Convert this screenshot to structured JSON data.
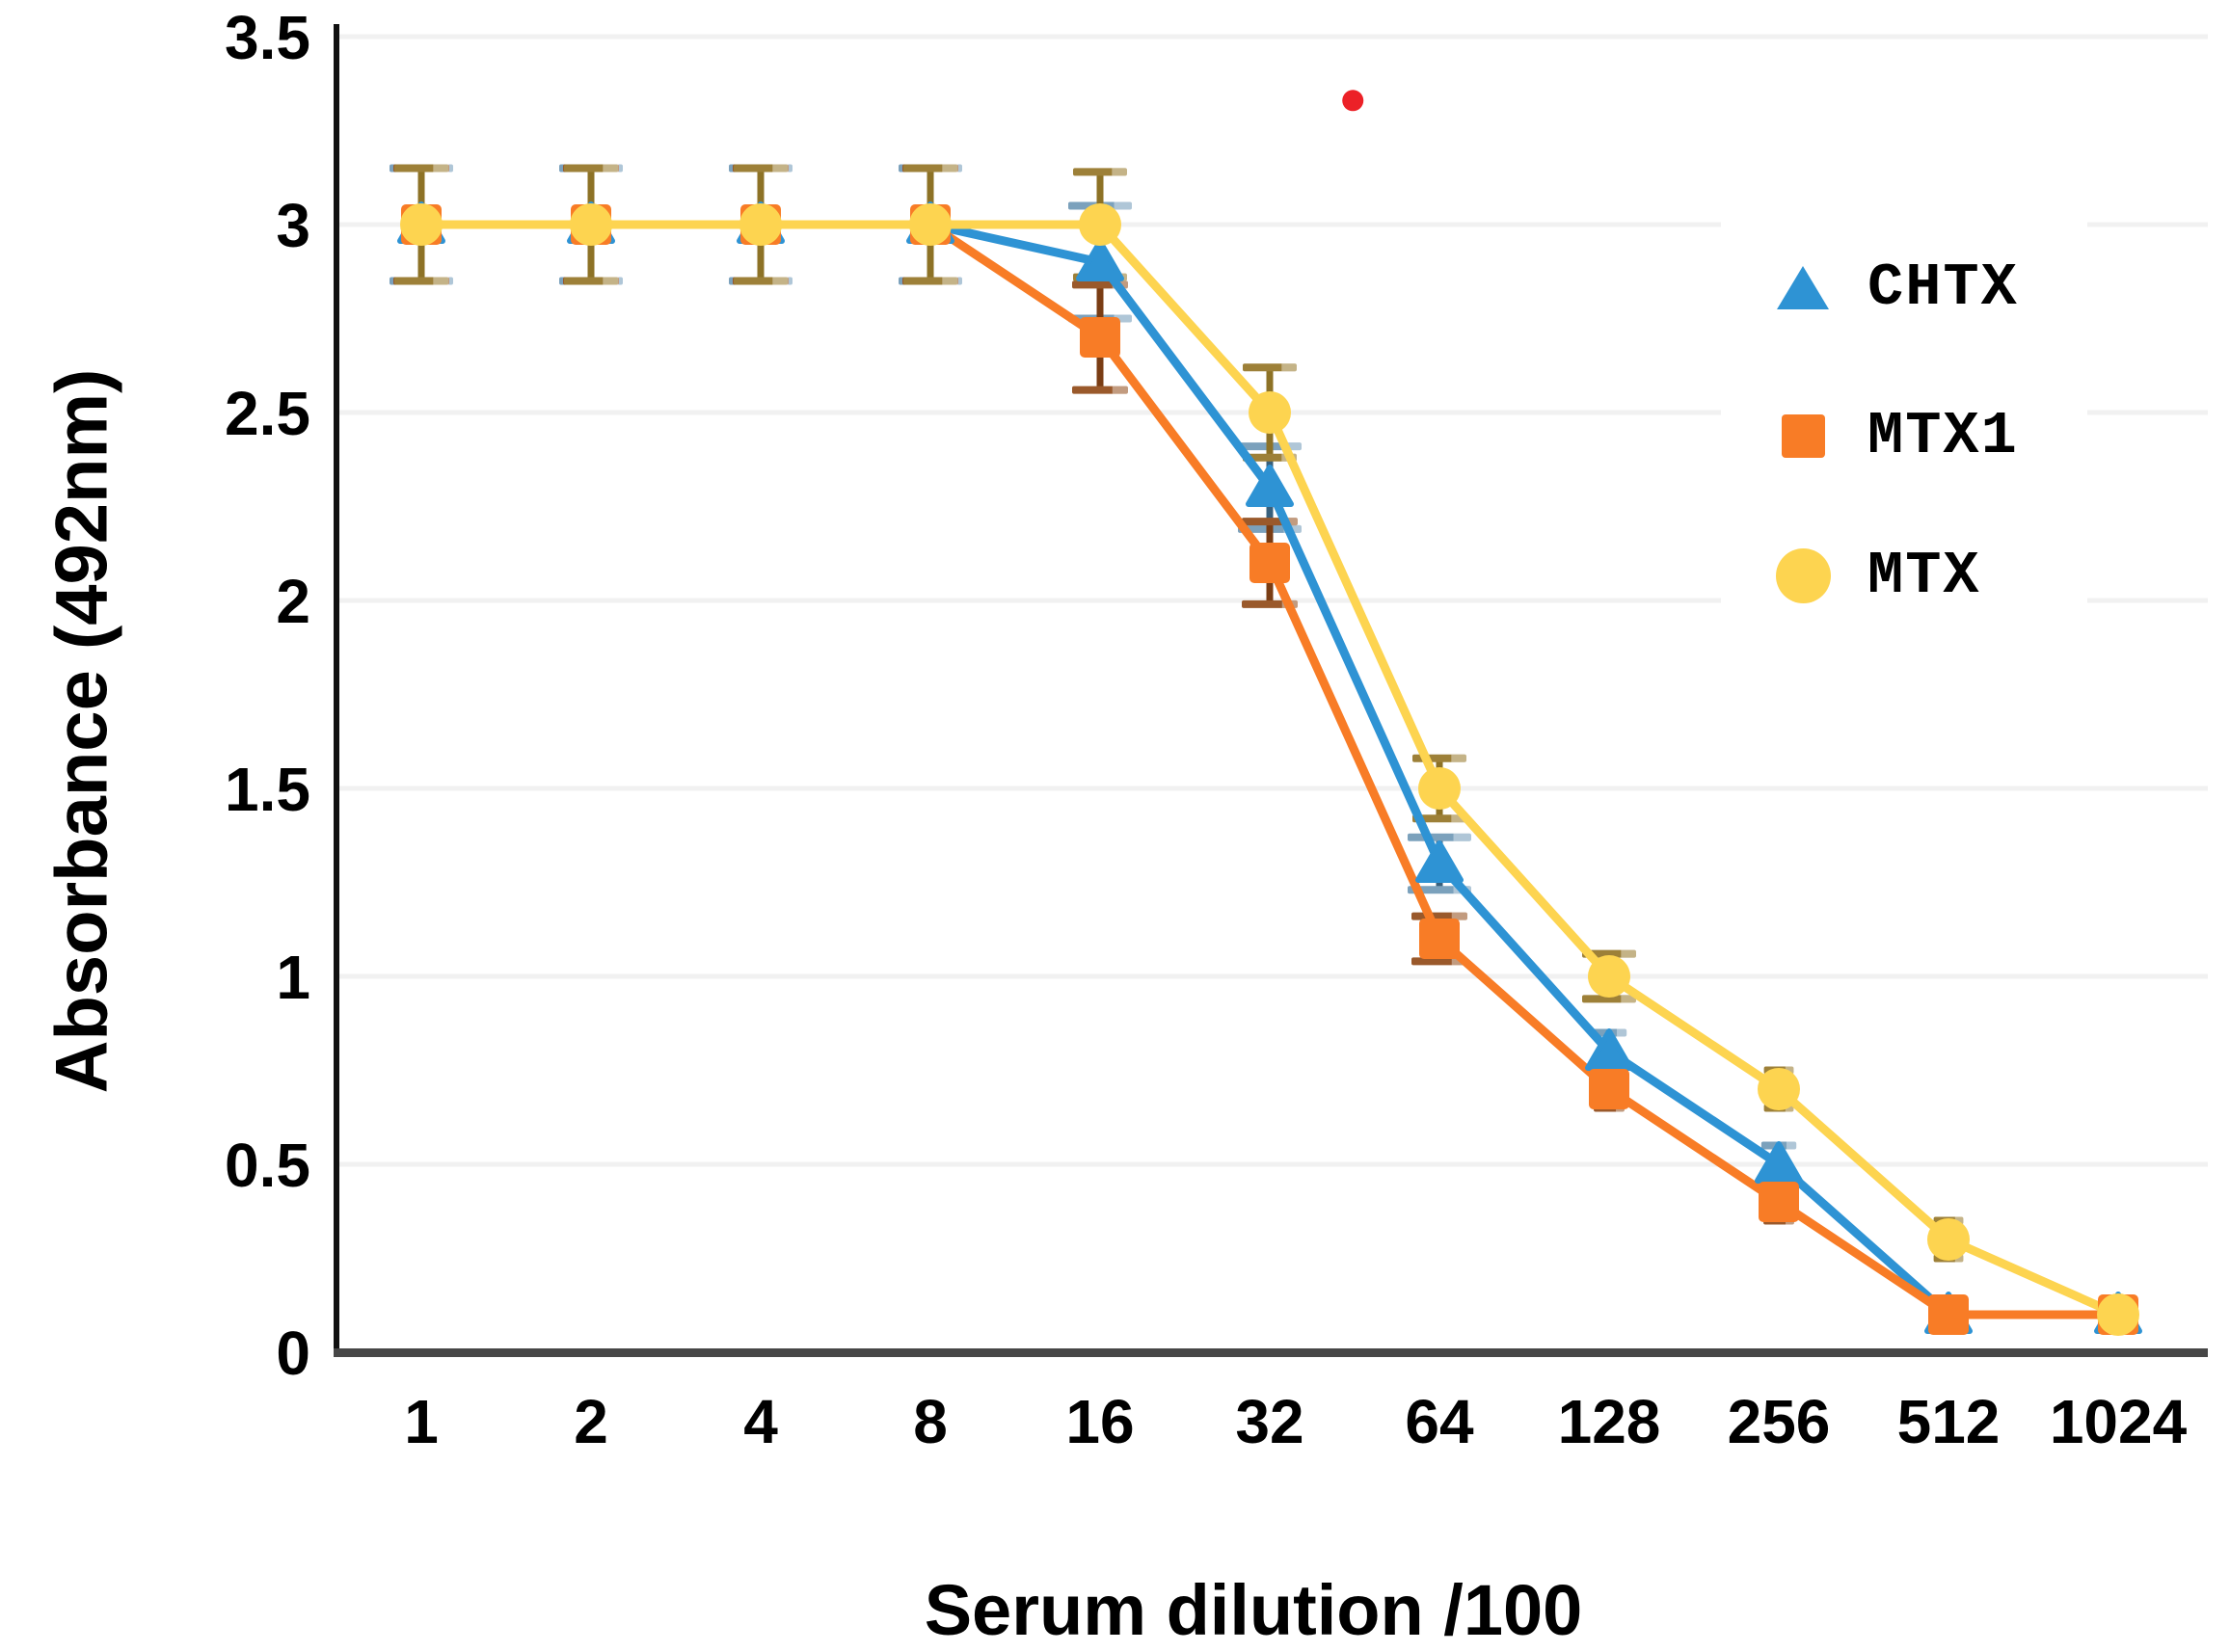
{
  "chart_data": {
    "type": "line",
    "title": "",
    "xlabel": "Serum dilution /100",
    "ylabel": "Absorbance (492nm)",
    "categories": [
      "1",
      "2",
      "4",
      "8",
      "16",
      "32",
      "64",
      "128",
      "256",
      "512",
      "1024"
    ],
    "y_ticks": [
      "3.5",
      "3",
      "2.5",
      "2",
      "1.5",
      "1",
      "0.5",
      "0"
    ],
    "ylim": [
      0,
      3.5
    ],
    "grid": "horizontal",
    "gridline_color": "#f1f1f1",
    "axis_color": "#474747",
    "y_axis_color": "#111111",
    "legend_position": "right",
    "series": [
      {
        "name": "CHTX",
        "marker": "triangle",
        "color": "#2e93d4",
        "error_stem_color": "#38607c",
        "error_cap_color": "#7ba1bc",
        "values": [
          3.0,
          3.0,
          3.0,
          3.0,
          2.9,
          2.3,
          1.3,
          0.8,
          0.5,
          0.1,
          0.1
        ],
        "errors": [
          0.15,
          0.15,
          0.15,
          0.15,
          0.15,
          0.11,
          0.07,
          0.05,
          0.05,
          0.04,
          0.03
        ]
      },
      {
        "name": "MTX1",
        "marker": "square",
        "color": "#f87c26",
        "error_stem_color": "#7a3d14",
        "error_cap_color": "#9a592b",
        "values": [
          3.0,
          3.0,
          3.0,
          3.0,
          2.7,
          2.1,
          1.1,
          0.7,
          0.4,
          0.1,
          0.1
        ],
        "errors": [
          0.15,
          0.15,
          0.15,
          0.15,
          0.14,
          0.11,
          0.06,
          0.05,
          0.05,
          0.04,
          0.03
        ]
      },
      {
        "name": "MTX",
        "marker": "circle",
        "color": "#fdd450",
        "error_stem_color": "#8d7226",
        "error_cap_color": "#9d8038",
        "values": [
          3.0,
          3.0,
          3.0,
          3.0,
          3.0,
          2.5,
          1.5,
          1.0,
          0.7,
          0.3,
          0.1
        ],
        "errors": [
          0.15,
          0.15,
          0.15,
          0.15,
          0.14,
          0.12,
          0.08,
          0.06,
          0.05,
          0.05,
          0.03
        ]
      }
    ],
    "annotations": [
      {
        "type": "dot",
        "color": "#ec2127",
        "x_index": 5.49,
        "y_value": 3.33
      }
    ]
  }
}
